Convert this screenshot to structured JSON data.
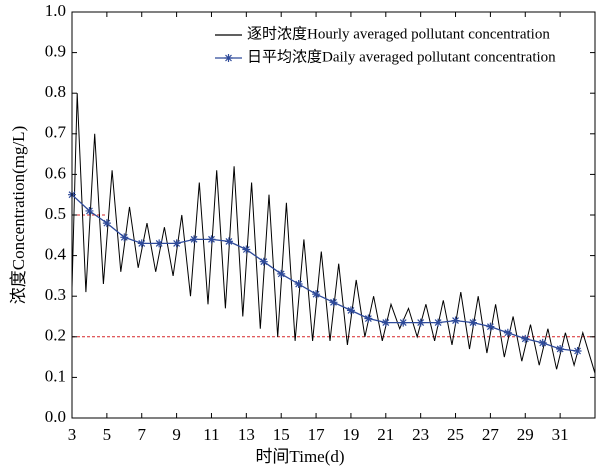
{
  "chart_data": {
    "type": "line",
    "xlabel": "时间Time(d)",
    "ylabel": "浓度Concentration(mg/L)",
    "xlim": [
      3,
      33
    ],
    "xticks": [
      3,
      5,
      7,
      9,
      11,
      13,
      15,
      17,
      19,
      21,
      23,
      25,
      27,
      29,
      31
    ],
    "ylim": [
      0,
      1
    ],
    "yticks": [
      {
        "value": 0,
        "label": "0.0"
      },
      0.1,
      0.2,
      0.3,
      0.4,
      0.5,
      0.6,
      0.7,
      0.8,
      0.9,
      {
        "value": 1,
        "label": "1.0"
      }
    ],
    "legend": "upper right",
    "series": [
      {
        "name": "逐时浓度Hourly averaged pollutant concentration",
        "color": "#000000",
        "marker": "none",
        "x": [
          3.0,
          3.3,
          3.8,
          4.3,
          4.8,
          5.3,
          5.8,
          6.3,
          6.8,
          7.3,
          7.8,
          8.3,
          8.8,
          9.3,
          9.8,
          10.3,
          10.8,
          11.3,
          11.8,
          12.3,
          12.8,
          13.3,
          13.8,
          14.3,
          14.8,
          15.3,
          15.8,
          16.3,
          16.8,
          17.3,
          17.8,
          18.3,
          18.8,
          19.3,
          19.8,
          20.3,
          20.8,
          21.3,
          21.8,
          22.3,
          22.8,
          23.3,
          23.8,
          24.3,
          24.8,
          25.3,
          25.8,
          26.3,
          26.8,
          27.3,
          27.8,
          28.3,
          28.8,
          29.3,
          29.8,
          30.3,
          30.8,
          31.3,
          31.8,
          32.3,
          33.0
        ],
        "values": [
          0.32,
          0.8,
          0.31,
          0.7,
          0.33,
          0.61,
          0.36,
          0.52,
          0.37,
          0.48,
          0.36,
          0.47,
          0.35,
          0.5,
          0.3,
          0.58,
          0.28,
          0.61,
          0.27,
          0.62,
          0.25,
          0.58,
          0.22,
          0.55,
          0.2,
          0.53,
          0.19,
          0.44,
          0.19,
          0.41,
          0.19,
          0.38,
          0.18,
          0.34,
          0.2,
          0.3,
          0.19,
          0.28,
          0.22,
          0.27,
          0.2,
          0.28,
          0.19,
          0.29,
          0.18,
          0.31,
          0.17,
          0.3,
          0.16,
          0.28,
          0.15,
          0.25,
          0.14,
          0.23,
          0.13,
          0.22,
          0.12,
          0.21,
          0.13,
          0.21,
          0.11
        ]
      },
      {
        "name": "日平均浓度Daily averaged pollutant concentration",
        "color": "#2e4a9a",
        "marker": "star",
        "x": [
          3,
          4,
          5,
          6,
          7,
          8,
          9,
          10,
          11,
          12,
          13,
          14,
          15,
          16,
          17,
          18,
          19,
          20,
          21,
          22,
          23,
          24,
          25,
          26,
          27,
          28,
          29,
          30,
          31,
          32
        ],
        "values": [
          0.55,
          0.51,
          0.48,
          0.445,
          0.43,
          0.43,
          0.43,
          0.44,
          0.44,
          0.435,
          0.415,
          0.385,
          0.355,
          0.33,
          0.305,
          0.285,
          0.265,
          0.245,
          0.235,
          0.235,
          0.235,
          0.235,
          0.24,
          0.235,
          0.225,
          0.21,
          0.195,
          0.185,
          0.17,
          0.165
        ]
      }
    ],
    "hlines": [
      {
        "y": 0.5,
        "x": [
          3,
          5
        ],
        "color": "#d62728"
      },
      {
        "y": 0.2,
        "x": [
          3,
          33
        ],
        "color": "#d62728"
      }
    ]
  }
}
